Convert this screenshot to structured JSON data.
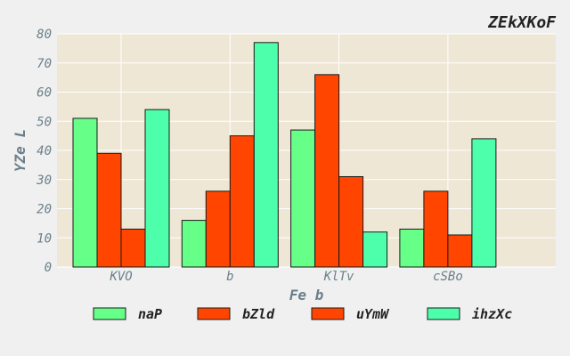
{
  "chart_data": {
    "type": "bar",
    "title": "ZEkXKoF",
    "xlabel": "Fe b",
    "ylabel": "YZe L",
    "categories": [
      "KVO",
      "b",
      "KlTv",
      "cSBo"
    ],
    "ylim": [
      0,
      80
    ],
    "yticks": [
      0,
      10,
      20,
      30,
      40,
      50,
      60,
      70,
      80
    ],
    "grid": true,
    "legend_position": "bottom",
    "series": [
      {
        "name": "naP",
        "color": "#66ff88",
        "values": [
          51,
          16,
          47,
          13
        ]
      },
      {
        "name": "bZld",
        "color": "#ff4500",
        "values": [
          39,
          26,
          66,
          26
        ]
      },
      {
        "name": "uYmW",
        "color": "#ff4500",
        "values": [
          13,
          45,
          31,
          11
        ]
      },
      {
        "name": "ihzXc",
        "color": "#4dffaa",
        "values": [
          54,
          77,
          12,
          44
        ]
      }
    ]
  }
}
